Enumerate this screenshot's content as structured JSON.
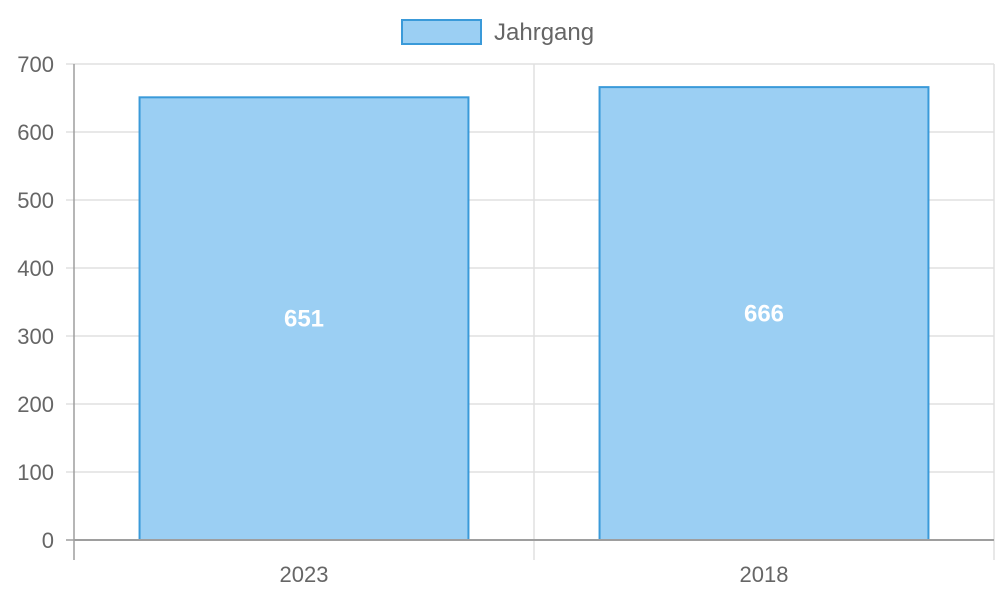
{
  "chart_data": {
    "type": "bar",
    "categories": [
      "2023",
      "2018"
    ],
    "series": [
      {
        "name": "Jahrgang",
        "values": [
          651,
          666
        ]
      }
    ],
    "data_labels": [
      "651",
      "666"
    ],
    "ylim": [
      0,
      700
    ],
    "y_ticks": [
      0,
      100,
      200,
      300,
      400,
      500,
      600,
      700
    ],
    "y_tick_labels": [
      "0",
      "100",
      "200",
      "300",
      "400",
      "500",
      "600",
      "700"
    ],
    "grid": true,
    "legend_position": "top",
    "colors": {
      "bar_fill": "#9bcff3",
      "bar_stroke": "#3a9ad9",
      "grid": "#e0e0e0",
      "axis": "#9e9e9e",
      "text": "#666666",
      "data_label": "#ffffff"
    }
  }
}
